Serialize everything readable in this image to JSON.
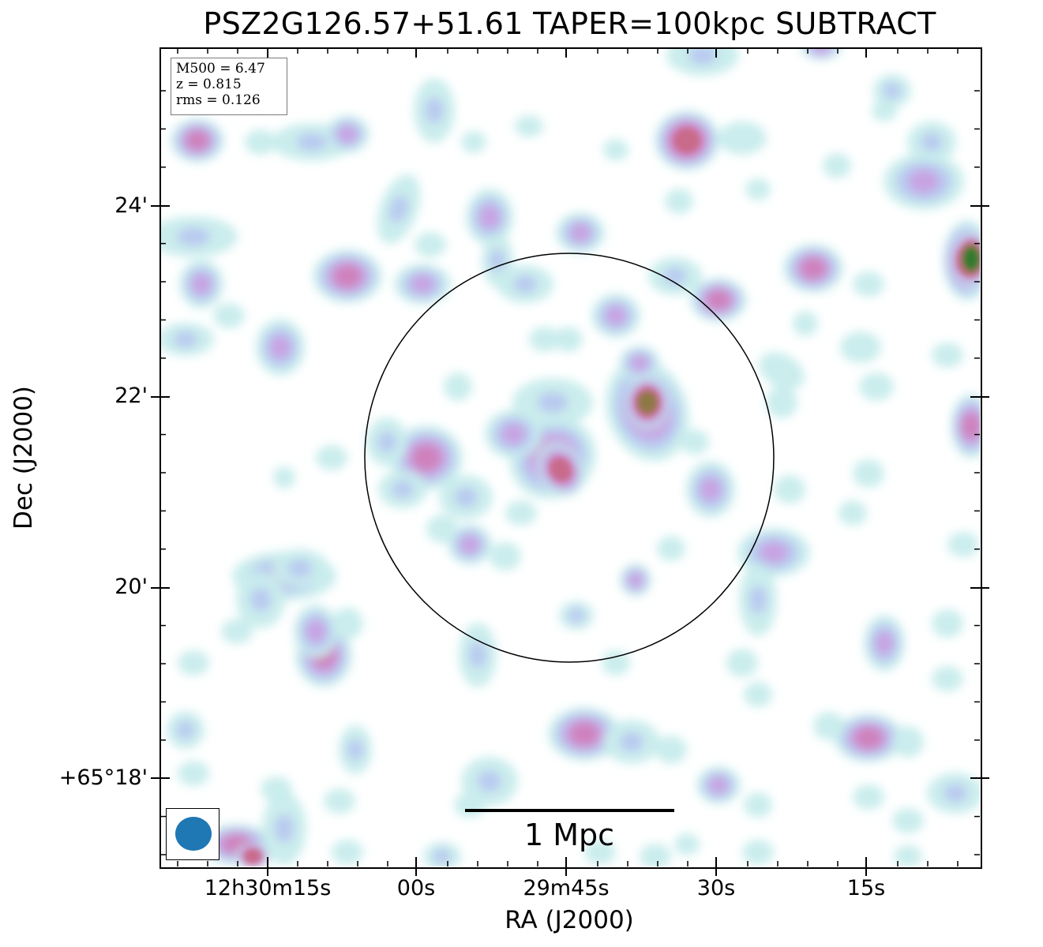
{
  "title": "PSZ2G126.57+51.61 TAPER=100kpc SUBTRACT",
  "info": {
    "m500": "M500 = 6.47",
    "z": "z = 0.815",
    "rms": "rms = 0.126"
  },
  "axes": {
    "xlabel": "RA (J2000)",
    "ylabel": "Dec (J2000)",
    "xticks": [
      "12h30m15s",
      "00s",
      "29m45s",
      "30s",
      "15s"
    ],
    "yticks": [
      "24'",
      "22'",
      "20'",
      "+65°18'"
    ]
  },
  "scalebar": {
    "label": "1 Mpc"
  },
  "colors": {
    "beam": "#1f77b4",
    "colormap": [
      "#c8ecec",
      "#b8c8f0",
      "#c8a0e0",
      "#d080b8",
      "#c86888",
      "#8a7a40",
      "#2e7a2e"
    ]
  }
}
